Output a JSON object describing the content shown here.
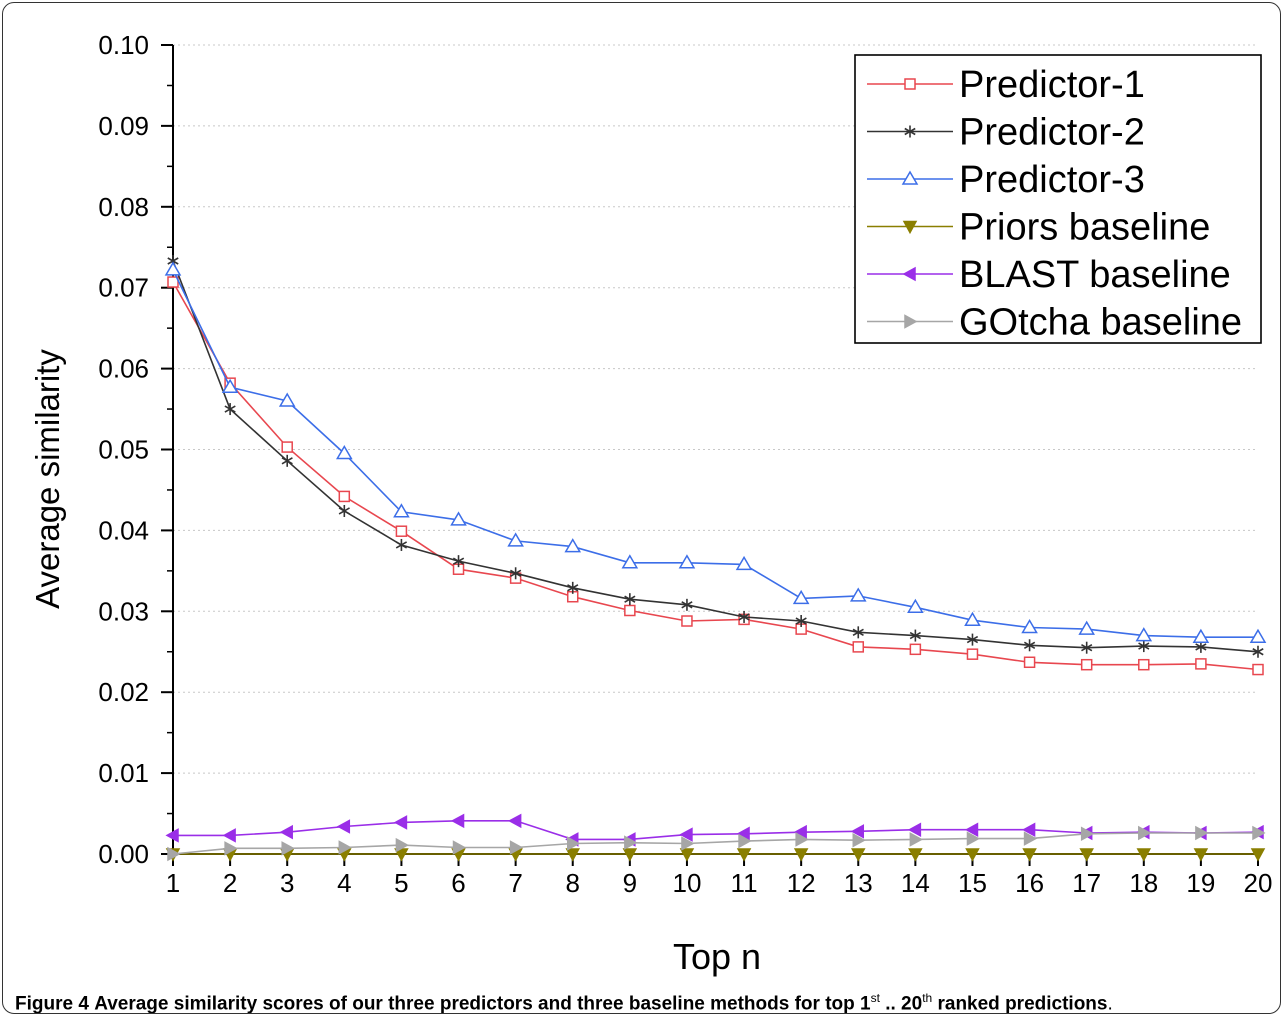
{
  "caption": {
    "label": "Figure 4",
    "text_a": "Average similarity scores of our three predictors and three baseline methods for top 1",
    "sup_a": "st",
    "text_b": " .. 20",
    "sup_b": "th",
    "text_c": " ranked predictions",
    "end": "."
  },
  "chart_data": {
    "type": "line",
    "xlabel": "Top n",
    "ylabel": "Average similarity",
    "xlim": [
      1,
      20
    ],
    "ylim": [
      0,
      0.1
    ],
    "x": [
      1,
      2,
      3,
      4,
      5,
      6,
      7,
      8,
      9,
      10,
      11,
      12,
      13,
      14,
      15,
      16,
      17,
      18,
      19,
      20
    ],
    "x_ticks": [
      "1",
      "2",
      "3",
      "4",
      "5",
      "6",
      "7",
      "8",
      "9",
      "10",
      "11",
      "12",
      "13",
      "14",
      "15",
      "16",
      "17",
      "18",
      "19",
      "20"
    ],
    "y_ticks": [
      "0.00",
      "0.01",
      "0.02",
      "0.03",
      "0.04",
      "0.05",
      "0.06",
      "0.07",
      "0.08",
      "0.09",
      "0.10"
    ],
    "grid": "horizontal dotted",
    "legend_position": "top-right",
    "series": [
      {
        "name": "Predictor-1",
        "color": "#e8474f",
        "marker": "square-open",
        "values": [
          0.0707,
          0.0582,
          0.0503,
          0.0442,
          0.0399,
          0.0352,
          0.0341,
          0.0318,
          0.0301,
          0.0288,
          0.029,
          0.0278,
          0.0256,
          0.0253,
          0.0247,
          0.0237,
          0.0234,
          0.0234,
          0.0235,
          0.0228
        ]
      },
      {
        "name": "Predictor-2",
        "color": "#333333",
        "marker": "asterisk",
        "values": [
          0.0733,
          0.055,
          0.0486,
          0.0424,
          0.0382,
          0.0362,
          0.0347,
          0.0329,
          0.0315,
          0.0308,
          0.0293,
          0.0288,
          0.0274,
          0.027,
          0.0265,
          0.0258,
          0.0255,
          0.0257,
          0.0256,
          0.025
        ]
      },
      {
        "name": "Predictor-3",
        "color": "#3c6ee8",
        "marker": "triangle-up-open",
        "values": [
          0.0722,
          0.0577,
          0.056,
          0.0495,
          0.0423,
          0.0413,
          0.0387,
          0.038,
          0.036,
          0.036,
          0.0358,
          0.0316,
          0.0319,
          0.0305,
          0.0289,
          0.028,
          0.0278,
          0.027,
          0.0268,
          0.0268
        ]
      },
      {
        "name": "Priors baseline",
        "color": "#8a7f00",
        "marker": "triangle-down-filled",
        "values": [
          0,
          0,
          0,
          0,
          0,
          0,
          0,
          0,
          0,
          0,
          0,
          0,
          0,
          0,
          0,
          0,
          0,
          0,
          0,
          0
        ]
      },
      {
        "name": "BLAST baseline",
        "color": "#9a2ee8",
        "marker": "triangle-left-filled",
        "values": [
          0.0023,
          0.0023,
          0.0027,
          0.0034,
          0.0039,
          0.0041,
          0.0041,
          0.0018,
          0.0018,
          0.0024,
          0.0025,
          0.0027,
          0.0028,
          0.003,
          0.003,
          0.003,
          0.0026,
          0.0027,
          0.0026,
          0.0027
        ]
      },
      {
        "name": "GOtcha baseline",
        "color": "#a6a6a6",
        "marker": "triangle-right-filled",
        "values": [
          0.0,
          0.0007,
          0.0007,
          0.0008,
          0.0011,
          0.0008,
          0.0008,
          0.0013,
          0.0014,
          0.0013,
          0.0016,
          0.0018,
          0.0017,
          0.0018,
          0.0019,
          0.0019,
          0.0025,
          0.0026,
          0.0026,
          0.0026
        ]
      }
    ]
  }
}
